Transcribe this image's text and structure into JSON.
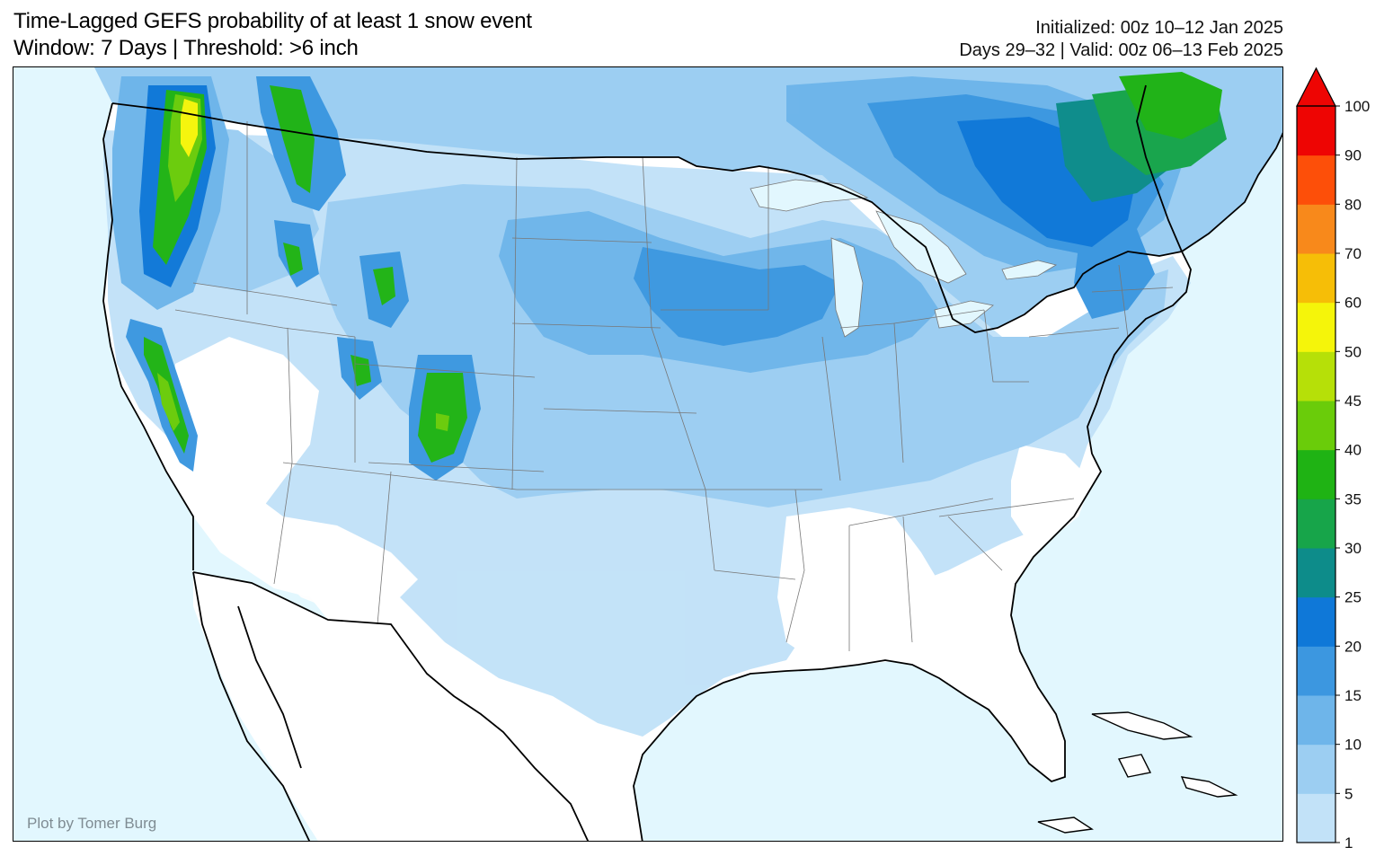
{
  "title": {
    "line1": "Time-Lagged GEFS probability of at least 1 snow event",
    "line2": "Window: 7 Days | Threshold: >6 inch"
  },
  "info": {
    "line1": "Initialized: 00z 10–12 Jan 2025",
    "line2": "Days 29–32 | Valid: 00z 06–13 Feb 2025"
  },
  "credit": "Plot by Tomer Burg",
  "colors": {
    "ocean": "#e2f7fe",
    "land": "#ffffff",
    "border": "#000000",
    "state_lines": "#777777"
  },
  "colorbar": {
    "levels": [
      "1",
      "5",
      "10",
      "15",
      "20",
      "25",
      "30",
      "35",
      "40",
      "45",
      "50",
      "60",
      "70",
      "80",
      "90",
      "100"
    ],
    "colors": [
      "#c2e2f8",
      "#9ccef2",
      "#6eb5ea",
      "#3c97e0",
      "#0f78d8",
      "#0d8c8a",
      "#17a54a",
      "#1fb314",
      "#6acc0a",
      "#b6e008",
      "#f5f50a",
      "#f6be07",
      "#f8891b",
      "#fd4f09",
      "#ee0503"
    ],
    "extend": "max"
  },
  "map": {
    "region": "Contiguous United States",
    "shading": [
      {
        "region": "Pacific Northwest Cascades",
        "level": "50"
      },
      {
        "region": "Sierra Nevada",
        "level": "40"
      },
      {
        "region": "Northern Rockies",
        "level": "35"
      },
      {
        "region": "Colorado Rockies",
        "level": "35"
      },
      {
        "region": "Northern Maine / Quebec",
        "level": "30"
      },
      {
        "region": "Upper Midwest",
        "level": "15"
      },
      {
        "region": "Great Plains",
        "level": "5"
      },
      {
        "region": "Southern Plains",
        "level": "1"
      }
    ]
  }
}
